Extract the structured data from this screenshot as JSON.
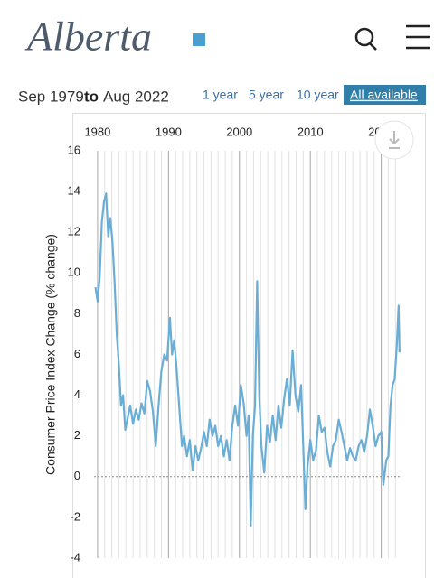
{
  "header": {
    "logo": "Alberta"
  },
  "range": {
    "from": "Sep 1979",
    "to": "to",
    "until": "Aug 2022"
  },
  "buttons": [
    "1 year",
    "5 year",
    "10 year",
    "All available"
  ],
  "chart_data": {
    "type": "line",
    "y_label": "Consumer Price Index Change (% change)",
    "color": "#6aaed6",
    "xlim": [
      1979.5,
      2022.6
    ],
    "xticks": [
      1980,
      1990,
      2000,
      2010,
      2020
    ],
    "ylim": [
      -4,
      16
    ],
    "yticks": [
      -4,
      -2,
      0,
      2,
      4,
      6,
      8,
      10,
      12,
      14,
      16
    ],
    "grid": true,
    "minor_grid_step": 1,
    "x": [
      1979.7,
      1980.0,
      1980.3,
      1980.6,
      1980.9,
      1981.2,
      1981.5,
      1981.8,
      1982.1,
      1982.4,
      1982.7,
      1983.0,
      1983.3,
      1983.6,
      1983.9,
      1984.2,
      1984.6,
      1985.0,
      1985.4,
      1985.8,
      1986.2,
      1986.6,
      1987.0,
      1987.4,
      1987.8,
      1988.2,
      1988.6,
      1989.0,
      1989.4,
      1989.8,
      1990.2,
      1990.5,
      1990.8,
      1991.1,
      1991.5,
      1991.9,
      1992.2,
      1992.6,
      1993.0,
      1993.4,
      1993.8,
      1994.2,
      1994.6,
      1995.0,
      1995.4,
      1995.8,
      1996.2,
      1996.6,
      1997.0,
      1997.4,
      1997.8,
      1998.2,
      1998.6,
      1999.0,
      1999.4,
      1999.8,
      2000.2,
      2000.6,
      2001.0,
      2001.3,
      2001.6,
      2001.9,
      2002.2,
      2002.5,
      2002.8,
      2003.1,
      2003.5,
      2003.9,
      2004.3,
      2004.7,
      2005.1,
      2005.5,
      2005.9,
      2006.3,
      2006.7,
      2007.1,
      2007.5,
      2007.9,
      2008.3,
      2008.7,
      2009.0,
      2009.3,
      2009.6,
      2010.0,
      2010.4,
      2010.8,
      2011.2,
      2011.6,
      2012.0,
      2012.4,
      2012.8,
      2013.2,
      2013.6,
      2014.0,
      2014.4,
      2014.8,
      2015.2,
      2015.6,
      2016.0,
      2016.4,
      2016.8,
      2017.2,
      2017.6,
      2018.0,
      2018.4,
      2018.8,
      2019.2,
      2019.6,
      2020.0,
      2020.3,
      2020.7,
      2021.0,
      2021.3,
      2021.6,
      2021.9,
      2022.2,
      2022.45,
      2022.58
    ],
    "values": [
      9.3,
      8.6,
      9.8,
      12.5,
      13.5,
      13.9,
      11.8,
      12.7,
      11.5,
      9.5,
      7,
      5.5,
      3.5,
      4,
      2.3,
      2.8,
      3.5,
      2.6,
      3.3,
      2.8,
      3.6,
      3.1,
      4.7,
      4.2,
      3.2,
      1.5,
      3.5,
      5.2,
      6,
      5.7,
      7.8,
      6,
      6.7,
      5.5,
      3.5,
      1.5,
      2,
      1,
      1.8,
      0.3,
      1.5,
      0.8,
      1.4,
      2.2,
      1.5,
      2.8,
      2,
      2.5,
      1.5,
      2,
      1,
      1.8,
      0.8,
      2.5,
      3.5,
      2.5,
      4.5,
      3.6,
      2,
      3,
      -2.4,
      2,
      3.5,
      9.6,
      4,
      1.5,
      0.2,
      2.5,
      1.7,
      3,
      1.8,
      3.5,
      2.4,
      3.8,
      4.8,
      3.5,
      6.2,
      4,
      3.2,
      4.5,
      1.5,
      -1.6,
      0.5,
      1.8,
      0.8,
      1.3,
      3,
      2.2,
      2.4,
      1.2,
      0.5,
      1.5,
      1.8,
      2.8,
      2.2,
      1.5,
      0.8,
      1.4,
      1,
      0.8,
      1.5,
      1.8,
      1.2,
      2,
      3.3,
      2.5,
      1.5,
      2,
      2.2,
      -0.4,
      0.8,
      1,
      3.5,
      4.5,
      4.8,
      6.5,
      8.4,
      6.1
    ]
  }
}
